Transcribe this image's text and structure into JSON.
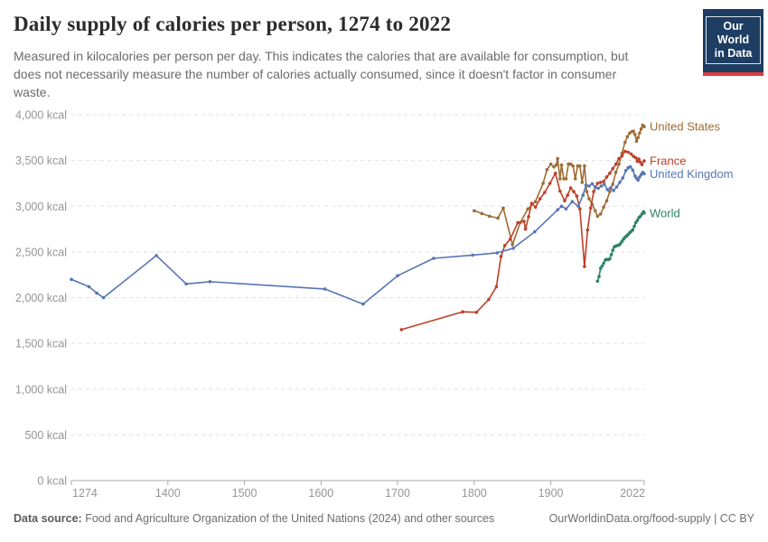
{
  "header": {
    "title": "Daily supply of calories per person, 1274 to 2022",
    "subtitle": "Measured in kilocalories per person per day. This indicates the calories that are available for consumption, but does not necessarily measure the number of calories actually consumed, since it doesn't factor in consumer waste.",
    "logo": {
      "line1": "Our World",
      "line2": "in Data"
    }
  },
  "footer": {
    "datasource_label": "Data source:",
    "datasource_text": " Food and Agriculture Organization of the United Nations (2024) and other sources",
    "link": "OurWorldinData.org/food-supply | CC BY"
  },
  "colors": {
    "united_states": "#9e6c34",
    "france": "#bf3f28",
    "united_kingdom": "#5776b5",
    "world": "#2c8465",
    "grid": "#e0e0e0",
    "axis": "#a8a8a8",
    "tick_label": "#959595",
    "logo_bg": "#1d3d63",
    "logo_stripe": "#d93a3f"
  },
  "chart_data": {
    "type": "line",
    "title": "Daily supply of calories per person, 1274 to 2022",
    "xlabel": "",
    "ylabel": "",
    "xlim": [
      1274,
      2022
    ],
    "ylim": [
      0,
      4000
    ],
    "x_ticks": [
      1274,
      1400,
      1500,
      1600,
      1700,
      1800,
      1900,
      2022
    ],
    "y_ticks": [
      0,
      500,
      1000,
      1500,
      2000,
      2500,
      3000,
      3500,
      4000
    ],
    "y_tick_suffix": " kcal",
    "grid": "horizontal-dashed",
    "legend_position": "line-end-labels",
    "series": [
      {
        "name": "United States",
        "color": "#9e6c34",
        "points": [
          [
            1800,
            2950
          ],
          [
            1810,
            2920
          ],
          [
            1820,
            2890
          ],
          [
            1831,
            2870
          ],
          [
            1838,
            2980
          ],
          [
            1850,
            2580
          ],
          [
            1860,
            2820
          ],
          [
            1870,
            2970
          ],
          [
            1880,
            3050
          ],
          [
            1890,
            3250
          ],
          [
            1895,
            3400
          ],
          [
            1900,
            3460
          ],
          [
            1904,
            3430
          ],
          [
            1907,
            3450
          ],
          [
            1909,
            3520
          ],
          [
            1912,
            3300
          ],
          [
            1914,
            3450
          ],
          [
            1917,
            3300
          ],
          [
            1920,
            3300
          ],
          [
            1923,
            3460
          ],
          [
            1926,
            3460
          ],
          [
            1929,
            3440
          ],
          [
            1932,
            3300
          ],
          [
            1935,
            3440
          ],
          [
            1938,
            3440
          ],
          [
            1941,
            3260
          ],
          [
            1944,
            3440
          ],
          [
            1947,
            3160
          ],
          [
            1950,
            3080
          ],
          [
            1954,
            3020
          ],
          [
            1958,
            2950
          ],
          [
            1961,
            2890
          ],
          [
            1965,
            2915
          ],
          [
            1969,
            2990
          ],
          [
            1973,
            3060
          ],
          [
            1977,
            3160
          ],
          [
            1981,
            3240
          ],
          [
            1985,
            3370
          ],
          [
            1989,
            3460
          ],
          [
            1993,
            3580
          ],
          [
            1997,
            3700
          ],
          [
            2000,
            3760
          ],
          [
            2003,
            3800
          ],
          [
            2006,
            3815
          ],
          [
            2008,
            3820
          ],
          [
            2010,
            3785
          ],
          [
            2012,
            3710
          ],
          [
            2014,
            3750
          ],
          [
            2016,
            3800
          ],
          [
            2018,
            3845
          ],
          [
            2020,
            3885
          ],
          [
            2022,
            3870
          ]
        ]
      },
      {
        "name": "France",
        "color": "#bf3f28",
        "points": [
          [
            1705,
            1650
          ],
          [
            1785,
            1845
          ],
          [
            1803,
            1840
          ],
          [
            1819,
            1980
          ],
          [
            1829,
            2120
          ],
          [
            1835,
            2450
          ],
          [
            1840,
            2570
          ],
          [
            1847,
            2640
          ],
          [
            1857,
            2820
          ],
          [
            1865,
            2835
          ],
          [
            1867,
            2750
          ],
          [
            1871,
            2885
          ],
          [
            1875,
            3030
          ],
          [
            1880,
            2990
          ],
          [
            1886,
            3080
          ],
          [
            1892,
            3150
          ],
          [
            1899,
            3250
          ],
          [
            1906,
            3360
          ],
          [
            1912,
            3165
          ],
          [
            1918,
            3060
          ],
          [
            1922,
            3120
          ],
          [
            1926,
            3200
          ],
          [
            1930,
            3160
          ],
          [
            1934,
            3110
          ],
          [
            1938,
            2970
          ],
          [
            1944,
            2340
          ],
          [
            1948,
            2740
          ],
          [
            1952,
            2980
          ],
          [
            1956,
            3160
          ],
          [
            1961,
            3250
          ],
          [
            1965,
            3260
          ],
          [
            1969,
            3270
          ],
          [
            1973,
            3320
          ],
          [
            1977,
            3360
          ],
          [
            1981,
            3410
          ],
          [
            1985,
            3460
          ],
          [
            1989,
            3520
          ],
          [
            1993,
            3550
          ],
          [
            1997,
            3600
          ],
          [
            2001,
            3590
          ],
          [
            2005,
            3570
          ],
          [
            2008,
            3545
          ],
          [
            2011,
            3530
          ],
          [
            2013,
            3490
          ],
          [
            2015,
            3515
          ],
          [
            2017,
            3480
          ],
          [
            2019,
            3455
          ],
          [
            2022,
            3495
          ]
        ]
      },
      {
        "name": "United Kingdom",
        "color": "#5776b5",
        "points": [
          [
            1274,
            2200
          ],
          [
            1297,
            2120
          ],
          [
            1307,
            2050
          ],
          [
            1316,
            2000
          ],
          [
            1385,
            2460
          ],
          [
            1424,
            2150
          ],
          [
            1455,
            2175
          ],
          [
            1605,
            2095
          ],
          [
            1655,
            1930
          ],
          [
            1700,
            2240
          ],
          [
            1747,
            2430
          ],
          [
            1798,
            2465
          ],
          [
            1830,
            2490
          ],
          [
            1851,
            2540
          ],
          [
            1879,
            2720
          ],
          [
            1909,
            2960
          ],
          [
            1914,
            3000
          ],
          [
            1920,
            2970
          ],
          [
            1928,
            3050
          ],
          [
            1936,
            3000
          ],
          [
            1942,
            3120
          ],
          [
            1946,
            3230
          ],
          [
            1950,
            3220
          ],
          [
            1954,
            3245
          ],
          [
            1958,
            3210
          ],
          [
            1962,
            3195
          ],
          [
            1966,
            3220
          ],
          [
            1970,
            3240
          ],
          [
            1974,
            3180
          ],
          [
            1978,
            3200
          ],
          [
            1982,
            3170
          ],
          [
            1986,
            3210
          ],
          [
            1990,
            3260
          ],
          [
            1994,
            3310
          ],
          [
            1998,
            3390
          ],
          [
            2001,
            3420
          ],
          [
            2004,
            3430
          ],
          [
            2007,
            3395
          ],
          [
            2010,
            3330
          ],
          [
            2012,
            3305
          ],
          [
            2014,
            3285
          ],
          [
            2016,
            3320
          ],
          [
            2018,
            3345
          ],
          [
            2020,
            3370
          ],
          [
            2022,
            3355
          ]
        ]
      },
      {
        "name": "World",
        "color": "#2c8465",
        "points": [
          [
            1961,
            2180
          ],
          [
            1963,
            2230
          ],
          [
            1965,
            2320
          ],
          [
            1967,
            2345
          ],
          [
            1969,
            2375
          ],
          [
            1971,
            2410
          ],
          [
            1973,
            2420
          ],
          [
            1975,
            2415
          ],
          [
            1977,
            2425
          ],
          [
            1979,
            2470
          ],
          [
            1981,
            2520
          ],
          [
            1983,
            2555
          ],
          [
            1985,
            2565
          ],
          [
            1987,
            2570
          ],
          [
            1989,
            2575
          ],
          [
            1991,
            2590
          ],
          [
            1993,
            2615
          ],
          [
            1995,
            2640
          ],
          [
            1997,
            2660
          ],
          [
            1999,
            2675
          ],
          [
            2001,
            2690
          ],
          [
            2003,
            2710
          ],
          [
            2005,
            2725
          ],
          [
            2007,
            2740
          ],
          [
            2009,
            2780
          ],
          [
            2011,
            2820
          ],
          [
            2013,
            2845
          ],
          [
            2015,
            2875
          ],
          [
            2017,
            2890
          ],
          [
            2019,
            2915
          ],
          [
            2021,
            2940
          ],
          [
            2022,
            2925
          ]
        ]
      }
    ]
  }
}
